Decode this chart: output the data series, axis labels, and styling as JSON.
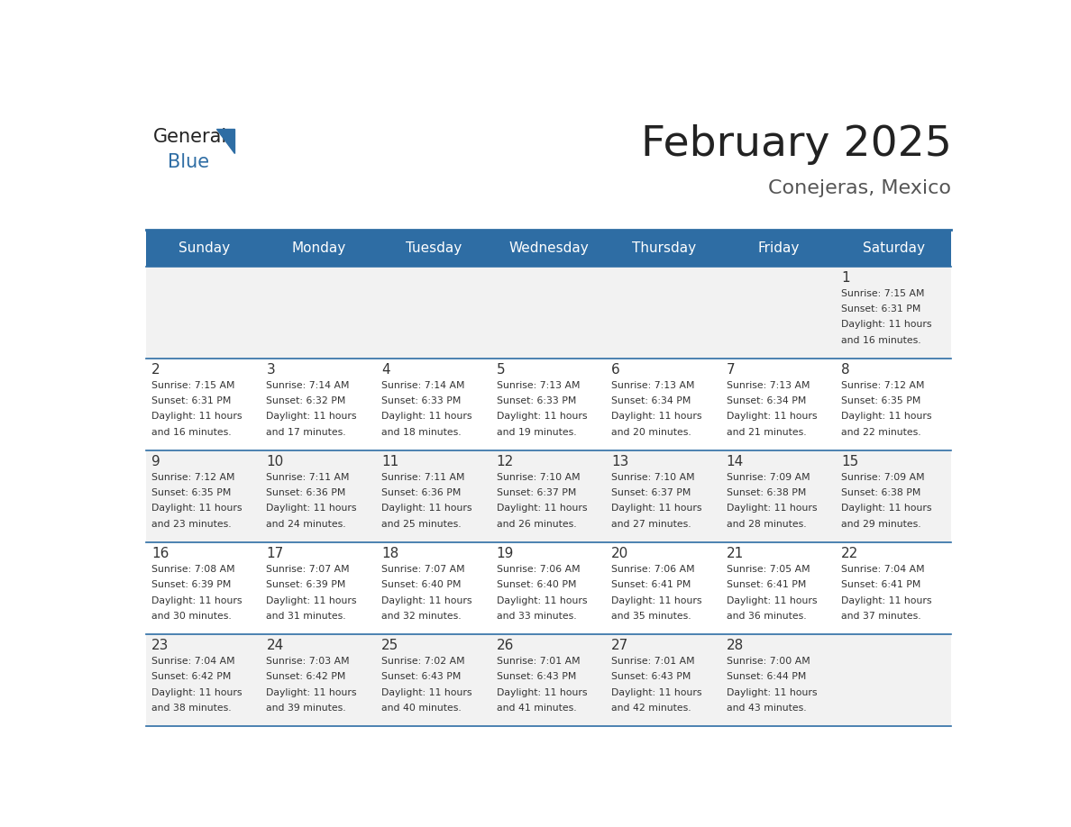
{
  "title": "February 2025",
  "subtitle": "Conejeras, Mexico",
  "days_of_week": [
    "Sunday",
    "Monday",
    "Tuesday",
    "Wednesday",
    "Thursday",
    "Friday",
    "Saturday"
  ],
  "header_bg": "#2E6DA4",
  "header_text_color": "#FFFFFF",
  "cell_bg_light": "#F2F2F2",
  "cell_bg_white": "#FFFFFF",
  "border_color": "#2E6DA4",
  "text_color": "#333333",
  "logo_general_color": "#222222",
  "logo_blue_color": "#2E6DA4",
  "title_color": "#222222",
  "subtitle_color": "#555555",
  "calendar_data": [
    [
      null,
      null,
      null,
      null,
      null,
      null,
      {
        "day": 1,
        "sunrise": "7:15 AM",
        "sunset": "6:31 PM",
        "daylight_hours": 11,
        "daylight_minutes": 16
      }
    ],
    [
      {
        "day": 2,
        "sunrise": "7:15 AM",
        "sunset": "6:31 PM",
        "daylight_hours": 11,
        "daylight_minutes": 16
      },
      {
        "day": 3,
        "sunrise": "7:14 AM",
        "sunset": "6:32 PM",
        "daylight_hours": 11,
        "daylight_minutes": 17
      },
      {
        "day": 4,
        "sunrise": "7:14 AM",
        "sunset": "6:33 PM",
        "daylight_hours": 11,
        "daylight_minutes": 18
      },
      {
        "day": 5,
        "sunrise": "7:13 AM",
        "sunset": "6:33 PM",
        "daylight_hours": 11,
        "daylight_minutes": 19
      },
      {
        "day": 6,
        "sunrise": "7:13 AM",
        "sunset": "6:34 PM",
        "daylight_hours": 11,
        "daylight_minutes": 20
      },
      {
        "day": 7,
        "sunrise": "7:13 AM",
        "sunset": "6:34 PM",
        "daylight_hours": 11,
        "daylight_minutes": 21
      },
      {
        "day": 8,
        "sunrise": "7:12 AM",
        "sunset": "6:35 PM",
        "daylight_hours": 11,
        "daylight_minutes": 22
      }
    ],
    [
      {
        "day": 9,
        "sunrise": "7:12 AM",
        "sunset": "6:35 PM",
        "daylight_hours": 11,
        "daylight_minutes": 23
      },
      {
        "day": 10,
        "sunrise": "7:11 AM",
        "sunset": "6:36 PM",
        "daylight_hours": 11,
        "daylight_minutes": 24
      },
      {
        "day": 11,
        "sunrise": "7:11 AM",
        "sunset": "6:36 PM",
        "daylight_hours": 11,
        "daylight_minutes": 25
      },
      {
        "day": 12,
        "sunrise": "7:10 AM",
        "sunset": "6:37 PM",
        "daylight_hours": 11,
        "daylight_minutes": 26
      },
      {
        "day": 13,
        "sunrise": "7:10 AM",
        "sunset": "6:37 PM",
        "daylight_hours": 11,
        "daylight_minutes": 27
      },
      {
        "day": 14,
        "sunrise": "7:09 AM",
        "sunset": "6:38 PM",
        "daylight_hours": 11,
        "daylight_minutes": 28
      },
      {
        "day": 15,
        "sunrise": "7:09 AM",
        "sunset": "6:38 PM",
        "daylight_hours": 11,
        "daylight_minutes": 29
      }
    ],
    [
      {
        "day": 16,
        "sunrise": "7:08 AM",
        "sunset": "6:39 PM",
        "daylight_hours": 11,
        "daylight_minutes": 30
      },
      {
        "day": 17,
        "sunrise": "7:07 AM",
        "sunset": "6:39 PM",
        "daylight_hours": 11,
        "daylight_minutes": 31
      },
      {
        "day": 18,
        "sunrise": "7:07 AM",
        "sunset": "6:40 PM",
        "daylight_hours": 11,
        "daylight_minutes": 32
      },
      {
        "day": 19,
        "sunrise": "7:06 AM",
        "sunset": "6:40 PM",
        "daylight_hours": 11,
        "daylight_minutes": 33
      },
      {
        "day": 20,
        "sunrise": "7:06 AM",
        "sunset": "6:41 PM",
        "daylight_hours": 11,
        "daylight_minutes": 35
      },
      {
        "day": 21,
        "sunrise": "7:05 AM",
        "sunset": "6:41 PM",
        "daylight_hours": 11,
        "daylight_minutes": 36
      },
      {
        "day": 22,
        "sunrise": "7:04 AM",
        "sunset": "6:41 PM",
        "daylight_hours": 11,
        "daylight_minutes": 37
      }
    ],
    [
      {
        "day": 23,
        "sunrise": "7:04 AM",
        "sunset": "6:42 PM",
        "daylight_hours": 11,
        "daylight_minutes": 38
      },
      {
        "day": 24,
        "sunrise": "7:03 AM",
        "sunset": "6:42 PM",
        "daylight_hours": 11,
        "daylight_minutes": 39
      },
      {
        "day": 25,
        "sunrise": "7:02 AM",
        "sunset": "6:43 PM",
        "daylight_hours": 11,
        "daylight_minutes": 40
      },
      {
        "day": 26,
        "sunrise": "7:01 AM",
        "sunset": "6:43 PM",
        "daylight_hours": 11,
        "daylight_minutes": 41
      },
      {
        "day": 27,
        "sunrise": "7:01 AM",
        "sunset": "6:43 PM",
        "daylight_hours": 11,
        "daylight_minutes": 42
      },
      {
        "day": 28,
        "sunrise": "7:00 AM",
        "sunset": "6:44 PM",
        "daylight_hours": 11,
        "daylight_minutes": 43
      },
      null
    ]
  ]
}
